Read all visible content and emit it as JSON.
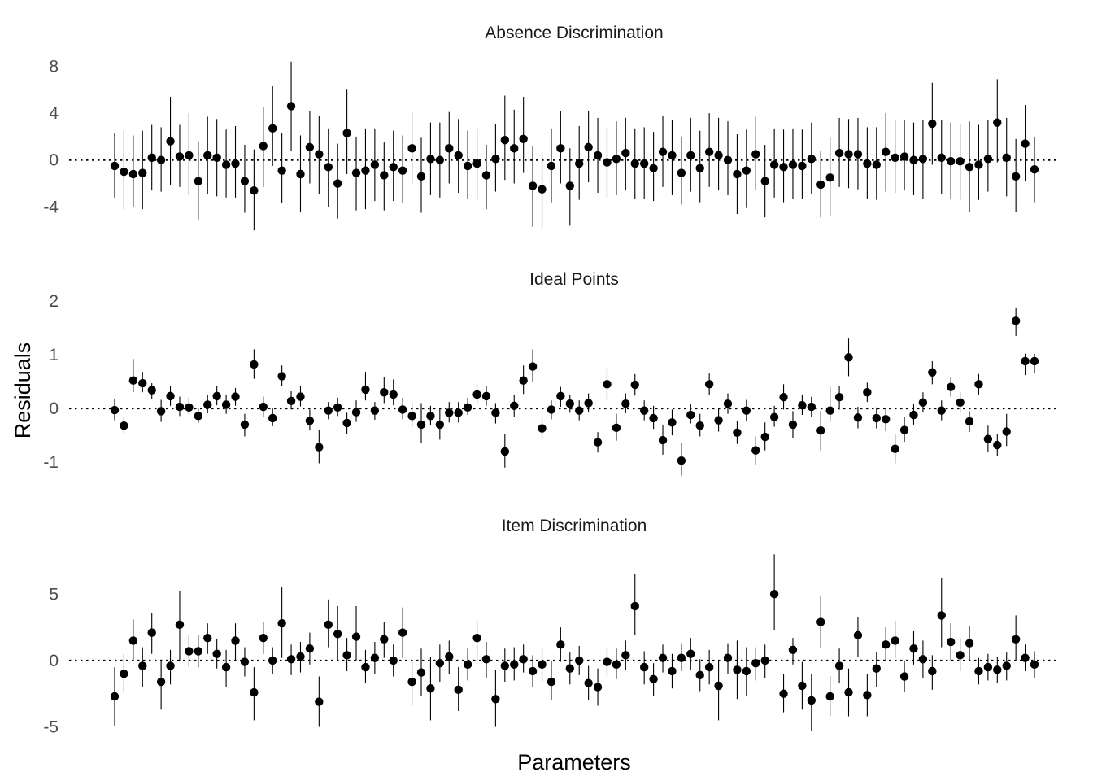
{
  "chart_data": {
    "type": "scatter",
    "xlabel": "Parameters",
    "ylabel": "Residuals",
    "grid": false,
    "reference_line": 0,
    "panels": [
      {
        "title": "Absence Discrimination",
        "ylim": [
          -6.2,
          8.8
        ],
        "yticks": [
          -4,
          0,
          4,
          8
        ],
        "yticklabels": [
          "-4",
          "0",
          "4",
          "8"
        ],
        "values": [
          -0.5,
          -1.0,
          -1.2,
          -1.1,
          0.2,
          0.0,
          1.6,
          0.3,
          0.4,
          -1.8,
          0.4,
          0.2,
          -0.4,
          -0.3,
          -1.8,
          -2.6,
          1.2,
          2.7,
          -0.9,
          4.6,
          -1.2,
          1.1,
          0.5,
          -0.6,
          -2.0,
          2.3,
          -1.1,
          -0.9,
          -0.4,
          -1.3,
          -0.6,
          -0.9,
          1.0,
          -1.4,
          0.1,
          0.0,
          1.0,
          0.4,
          -0.5,
          -0.3,
          -1.3,
          0.1,
          1.7,
          1.0,
          1.8,
          -2.2,
          -2.5,
          -0.5,
          1.0,
          -2.2,
          -0.3,
          1.1,
          0.4,
          -0.2,
          0.1,
          0.6,
          -0.3,
          -0.3,
          -0.7,
          0.7,
          0.4,
          -1.1,
          0.4,
          -0.7,
          0.7,
          0.4,
          0.0,
          -1.2,
          -0.9,
          0.5,
          -1.8,
          -0.4,
          -0.6,
          -0.4,
          -0.5,
          0.1,
          -2.1,
          -1.5,
          0.6,
          0.5,
          0.5,
          -0.3,
          -0.4,
          0.7,
          0.2,
          0.3,
          0.0,
          0.1,
          3.1,
          0.2,
          -0.1,
          -0.1,
          -0.6,
          -0.4,
          0.1,
          3.2,
          0.2,
          -1.4,
          1.4,
          -0.8
        ],
        "lower": [
          -3.2,
          -4.2,
          -4.0,
          -4.2,
          -2.6,
          -2.7,
          -2.1,
          -2.3,
          -3.0,
          -5.1,
          -2.9,
          -3.1,
          -3.2,
          -3.2,
          -4.5,
          -6.0,
          -2.3,
          -0.5,
          -3.7,
          0.8,
          -4.4,
          -2.0,
          -2.9,
          -4.0,
          -5.0,
          -1.2,
          -4.3,
          -4.2,
          -3.5,
          -4.3,
          -3.5,
          -3.7,
          -2.0,
          -4.5,
          -3.0,
          -3.2,
          -2.0,
          -2.8,
          -3.3,
          -3.4,
          -4.2,
          -2.7,
          -1.7,
          -2.0,
          -1.1,
          -5.7,
          -5.8,
          -3.6,
          -2.0,
          -5.6,
          -3.4,
          -1.9,
          -2.8,
          -3.2,
          -3.0,
          -2.6,
          -3.3,
          -3.3,
          -3.5,
          -2.3,
          -3.0,
          -3.8,
          -2.7,
          -3.6,
          -2.3,
          -2.6,
          -3.0,
          -4.6,
          -4.1,
          -2.6,
          -4.9,
          -3.2,
          -3.6,
          -3.3,
          -3.3,
          -2.9,
          -4.9,
          -4.8,
          -2.3,
          -2.4,
          -2.5,
          -3.3,
          -3.4,
          -2.7,
          -2.8,
          -2.6,
          -3.0,
          -3.3,
          -0.4,
          -2.9,
          -3.3,
          -3.4,
          -4.4,
          -3.4,
          -2.7,
          -0.2,
          -3.1,
          -4.4,
          -1.8,
          -3.6
        ],
        "upper": [
          2.3,
          2.5,
          2.1,
          2.5,
          3.0,
          2.8,
          5.4,
          3.0,
          4.0,
          1.6,
          3.7,
          3.5,
          2.6,
          2.9,
          1.3,
          0.9,
          4.5,
          6.3,
          2.3,
          8.4,
          2.1,
          4.2,
          3.8,
          2.7,
          1.4,
          6.0,
          2.0,
          2.7,
          2.7,
          1.5,
          2.5,
          2.1,
          4.1,
          1.9,
          3.2,
          3.2,
          4.1,
          3.5,
          2.5,
          2.7,
          1.3,
          3.1,
          5.5,
          4.3,
          5.4,
          1.2,
          0.8,
          2.7,
          4.2,
          1.0,
          2.9,
          4.2,
          3.6,
          2.8,
          3.3,
          3.6,
          2.7,
          2.8,
          2.4,
          3.8,
          3.4,
          2.0,
          3.6,
          2.5,
          4.0,
          3.6,
          3.3,
          2.2,
          2.6,
          3.7,
          1.3,
          2.7,
          2.6,
          2.7,
          2.6,
          3.2,
          0.8,
          1.9,
          3.6,
          3.5,
          3.6,
          2.8,
          2.8,
          4.0,
          3.4,
          3.4,
          3.2,
          3.4,
          6.6,
          3.4,
          3.2,
          3.1,
          3.3,
          3.0,
          3.4,
          6.9,
          3.6,
          1.8,
          4.7,
          2.0
        ]
      },
      {
        "title": "Ideal Points",
        "ylim": [
          -1.3,
          2.15
        ],
        "yticks": [
          -1,
          0,
          1,
          2
        ],
        "yticklabels": [
          "-1",
          "0",
          "1",
          "2"
        ],
        "values": [
          -0.03,
          -0.32,
          0.52,
          0.47,
          0.34,
          -0.05,
          0.23,
          0.03,
          0.02,
          -0.14,
          0.07,
          0.23,
          0.07,
          0.22,
          -0.3,
          0.82,
          0.03,
          -0.18,
          0.6,
          0.14,
          0.22,
          -0.23,
          -0.72,
          -0.04,
          0.02,
          -0.27,
          -0.07,
          0.35,
          -0.04,
          0.3,
          0.26,
          -0.02,
          -0.14,
          -0.3,
          -0.14,
          -0.3,
          -0.08,
          -0.08,
          0.02,
          0.26,
          0.23,
          -0.08,
          -0.8,
          0.05,
          0.52,
          0.78,
          -0.37,
          -0.02,
          0.23,
          0.09,
          -0.04,
          0.1,
          -0.63,
          0.45,
          -0.36,
          0.09,
          0.44,
          -0.04,
          -0.18,
          -0.59,
          -0.26,
          -0.97,
          -0.12,
          -0.32,
          0.45,
          -0.22,
          0.09,
          -0.45,
          -0.04,
          -0.78,
          -0.53,
          -0.16,
          0.21,
          -0.3,
          0.06,
          0.03,
          -0.41,
          -0.04,
          0.21,
          0.95,
          -0.17,
          0.3,
          -0.18,
          -0.2,
          -0.75,
          -0.4,
          -0.12,
          0.11,
          0.67,
          -0.04,
          0.4,
          0.11,
          -0.24,
          0.45,
          -0.57,
          -0.68,
          -0.43,
          1.63,
          0.88,
          0.88
        ],
        "lower": [
          -0.22,
          -0.46,
          0.3,
          0.3,
          0.18,
          -0.25,
          0.05,
          -0.14,
          -0.12,
          -0.27,
          -0.09,
          0.06,
          -0.1,
          0.05,
          -0.52,
          0.55,
          -0.16,
          -0.33,
          0.42,
          -0.02,
          0.04,
          -0.41,
          -1.02,
          -0.2,
          -0.14,
          -0.48,
          -0.25,
          0.15,
          -0.21,
          0.1,
          0.06,
          -0.2,
          -0.34,
          -0.64,
          -0.31,
          -0.58,
          -0.26,
          -0.26,
          -0.12,
          0.08,
          0.05,
          -0.28,
          -1.1,
          -0.16,
          0.27,
          0.5,
          -0.55,
          -0.2,
          0.03,
          -0.08,
          -0.22,
          -0.07,
          -0.82,
          0.15,
          -0.6,
          -0.09,
          0.24,
          -0.22,
          -0.38,
          -0.86,
          -0.5,
          -1.25,
          -0.28,
          -0.52,
          0.25,
          -0.43,
          -0.1,
          -0.66,
          -0.24,
          -1.05,
          -0.78,
          -0.34,
          -0.02,
          -0.55,
          -0.12,
          -0.15,
          -0.78,
          -0.25,
          -0.02,
          0.6,
          -0.37,
          0.12,
          -0.37,
          -0.42,
          -1.02,
          -0.62,
          -0.3,
          -0.07,
          0.45,
          -0.22,
          0.22,
          -0.08,
          -0.44,
          0.26,
          -0.8,
          -0.88,
          -0.7,
          1.35,
          0.62,
          0.65
        ],
        "upper": [
          0.18,
          -0.16,
          0.92,
          0.68,
          0.47,
          0.16,
          0.42,
          0.22,
          0.2,
          0.0,
          0.26,
          0.42,
          0.26,
          0.38,
          -0.1,
          1.1,
          0.22,
          0.0,
          0.8,
          0.32,
          0.42,
          -0.02,
          -0.4,
          0.12,
          0.2,
          -0.08,
          0.15,
          0.68,
          0.12,
          0.58,
          0.54,
          0.2,
          0.1,
          0.1,
          0.05,
          0.0,
          0.12,
          0.12,
          0.2,
          0.45,
          0.42,
          0.1,
          -0.48,
          0.26,
          0.8,
          1.1,
          -0.17,
          0.15,
          0.4,
          0.26,
          0.15,
          0.28,
          -0.44,
          0.75,
          -0.1,
          0.28,
          0.64,
          0.15,
          0.05,
          -0.3,
          -0.02,
          -0.65,
          0.08,
          -0.1,
          0.65,
          0.0,
          0.28,
          -0.24,
          0.16,
          -0.52,
          -0.26,
          0.05,
          0.45,
          -0.05,
          0.26,
          0.22,
          -0.05,
          0.4,
          0.42,
          1.3,
          0.03,
          0.48,
          0.02,
          0.02,
          -0.48,
          -0.16,
          0.08,
          0.3,
          0.88,
          0.15,
          0.58,
          0.3,
          -0.05,
          0.64,
          -0.32,
          -0.48,
          -0.1,
          1.88,
          1.02,
          1.02
        ]
      },
      {
        "title": "Item Discrimination",
        "ylim": [
          -5.7,
          8.2
        ],
        "yticks": [
          -5,
          0,
          5
        ],
        "yticklabels": [
          "-5",
          "0",
          "5"
        ],
        "values": [
          -2.7,
          -1.0,
          1.5,
          -0.4,
          2.1,
          -1.6,
          -0.4,
          2.7,
          0.7,
          0.7,
          1.7,
          0.5,
          -0.5,
          1.5,
          -0.1,
          -2.4,
          1.7,
          0.0,
          2.8,
          0.1,
          0.3,
          0.9,
          -3.1,
          2.7,
          2.0,
          0.4,
          1.8,
          -0.5,
          0.2,
          1.6,
          0.0,
          2.1,
          -1.6,
          -0.9,
          -2.1,
          -0.2,
          0.3,
          -2.2,
          -0.3,
          1.7,
          0.1,
          -2.9,
          -0.4,
          -0.3,
          0.1,
          -0.8,
          -0.3,
          -1.6,
          1.2,
          -0.6,
          0.0,
          -1.7,
          -2.0,
          -0.1,
          -0.3,
          0.4,
          4.1,
          -0.5,
          -1.4,
          0.2,
          -0.8,
          0.2,
          0.5,
          -1.1,
          -0.5,
          -1.9,
          0.2,
          -0.7,
          -0.8,
          -0.2,
          0.0,
          5.0,
          -2.5,
          0.8,
          -1.9,
          -3.0,
          2.9,
          -2.7,
          -0.4,
          -2.4,
          1.9,
          -2.6,
          -0.6,
          1.2,
          1.5,
          -1.2,
          0.9,
          0.1,
          -0.8,
          3.4,
          1.4,
          0.4,
          1.3,
          -0.8,
          -0.5,
          -0.7,
          -0.4,
          1.6,
          0.2,
          -0.3
        ],
        "lower": [
          -4.9,
          -2.4,
          0.0,
          -2.0,
          0.5,
          -3.7,
          -1.8,
          0.0,
          -0.5,
          -0.5,
          0.5,
          -0.6,
          -2.0,
          0.0,
          -1.2,
          -4.5,
          0.5,
          -1.0,
          0.2,
          -1.1,
          -0.9,
          -0.3,
          -5.0,
          1.0,
          0.0,
          -0.8,
          0.0,
          -1.7,
          -1.0,
          0.2,
          -1.2,
          0.2,
          -3.4,
          -2.7,
          -4.5,
          -1.6,
          -1.0,
          -3.8,
          -1.5,
          0.0,
          -1.3,
          -5.0,
          -1.6,
          -1.5,
          -0.9,
          -2.0,
          -1.6,
          -3.0,
          -0.1,
          -1.8,
          -1.1,
          -3.0,
          -3.4,
          -1.2,
          -1.4,
          -0.7,
          1.9,
          -1.8,
          -2.7,
          -0.9,
          -2.1,
          -0.8,
          -0.7,
          -2.3,
          -1.8,
          -4.5,
          -1.0,
          -2.9,
          -2.7,
          -1.5,
          -1.3,
          2.3,
          -3.9,
          -0.3,
          -3.7,
          -5.3,
          0.9,
          -4.2,
          -1.7,
          -4.2,
          0.3,
          -4.2,
          -2.0,
          0.0,
          0.2,
          -2.4,
          -0.3,
          -1.3,
          -2.2,
          1.0,
          0.0,
          -0.8,
          0.0,
          -1.8,
          -1.5,
          -1.7,
          -1.5,
          0.0,
          -0.8,
          -1.3
        ],
        "upper": [
          -0.5,
          0.5,
          3.1,
          1.0,
          3.6,
          0.0,
          0.8,
          5.2,
          1.9,
          1.9,
          2.8,
          1.6,
          0.8,
          2.8,
          1.0,
          -0.5,
          2.9,
          1.0,
          5.5,
          1.2,
          1.4,
          2.1,
          -1.2,
          4.6,
          4.1,
          1.7,
          4.1,
          0.8,
          1.4,
          2.9,
          1.2,
          4.0,
          -0.1,
          0.9,
          0.3,
          1.2,
          1.5,
          -0.5,
          0.9,
          3.0,
          1.4,
          -0.7,
          0.9,
          1.0,
          1.2,
          0.4,
          0.9,
          0.0,
          2.5,
          0.6,
          1.1,
          -0.4,
          -0.6,
          1.0,
          0.9,
          1.5,
          6.5,
          0.7,
          -0.2,
          1.2,
          0.5,
          1.3,
          1.7,
          0.1,
          0.8,
          0.0,
          1.3,
          1.5,
          1.0,
          1.0,
          1.2,
          8.0,
          -1.0,
          1.7,
          -0.1,
          -1.0,
          4.9,
          -1.2,
          0.9,
          -0.6,
          3.3,
          -1.0,
          0.6,
          2.5,
          3.0,
          0.0,
          2.2,
          1.5,
          0.4,
          6.2,
          2.8,
          1.7,
          2.6,
          0.2,
          0.5,
          0.3,
          0.6,
          3.4,
          1.2,
          0.7
        ]
      }
    ]
  }
}
